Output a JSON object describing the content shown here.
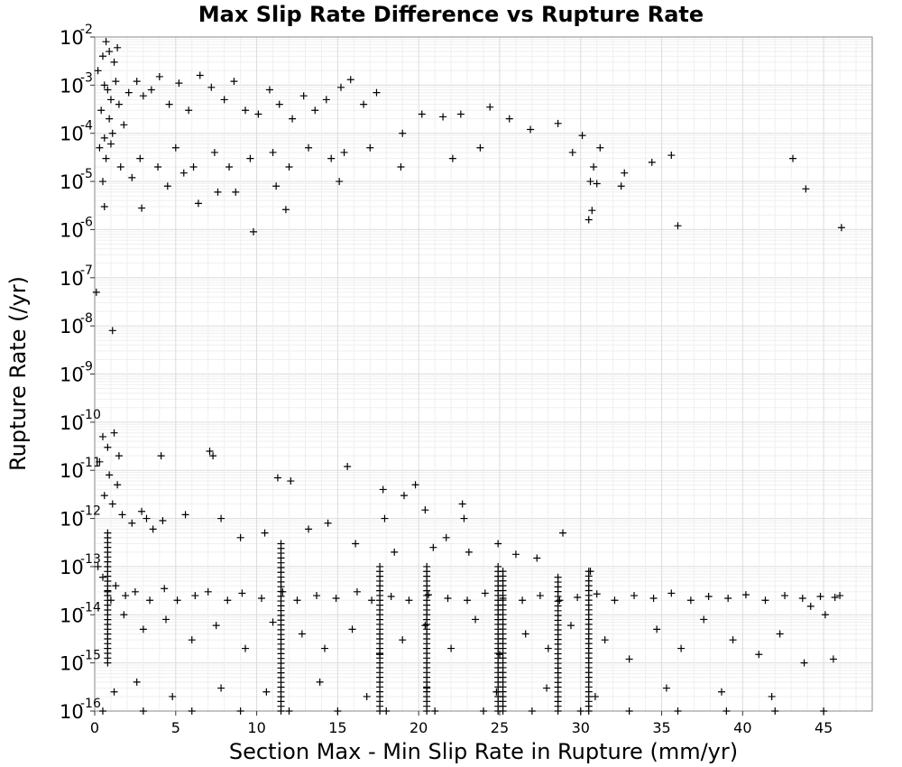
{
  "chart_data": {
    "type": "scatter",
    "title": "Max Slip Rate Difference vs Rupture Rate",
    "xlabel": "Section Max - Min Slip Rate in Rupture (mm/yr)",
    "ylabel": "Rupture Rate (/yr)",
    "xlim": [
      0,
      48
    ],
    "ylim": [
      1e-16,
      0.01
    ],
    "yscale": "log",
    "grid": true,
    "legend": "none",
    "marker": "plus",
    "marker_color": "#000000",
    "xticks": [
      0,
      5,
      10,
      15,
      20,
      25,
      30,
      35,
      40,
      45
    ],
    "yticks": [
      {
        "base": "10",
        "exp": "-2"
      },
      {
        "base": "10",
        "exp": "-3"
      },
      {
        "base": "10",
        "exp": "-4"
      },
      {
        "base": "10",
        "exp": "-5"
      },
      {
        "base": "10",
        "exp": "-6"
      },
      {
        "base": "10",
        "exp": "-7"
      },
      {
        "base": "10",
        "exp": "-8"
      },
      {
        "base": "10",
        "exp": "-9"
      },
      {
        "base": "10",
        "exp": "-10"
      },
      {
        "base": "10",
        "exp": "-11"
      },
      {
        "base": "10",
        "exp": "-12"
      },
      {
        "base": "10",
        "exp": "-13"
      },
      {
        "base": "10",
        "exp": "-14"
      },
      {
        "base": "10",
        "exp": "-15"
      },
      {
        "base": "10",
        "exp": "-16"
      }
    ],
    "points": [
      [
        0.2,
        0.002
      ],
      [
        0.5,
        0.004
      ],
      [
        0.7,
        0.008
      ],
      [
        0.9,
        0.005
      ],
      [
        1.2,
        0.003
      ],
      [
        1.4,
        0.006
      ],
      [
        0.6,
        0.001
      ],
      [
        0.8,
        0.0008
      ],
      [
        1.0,
        0.0005
      ],
      [
        1.3,
        0.0012
      ],
      [
        0.4,
        0.0003
      ],
      [
        0.9,
        0.0002
      ],
      [
        1.1,
        0.0001
      ],
      [
        0.6,
        8e-05
      ],
      [
        1.5,
        0.0004
      ],
      [
        0.3,
        5e-05
      ],
      [
        0.7,
        3e-05
      ],
      [
        1.0,
        6e-05
      ],
      [
        1.8,
        0.00015
      ],
      [
        2.1,
        0.0007
      ],
      [
        2.6,
        0.0012
      ],
      [
        3.0,
        0.0006
      ],
      [
        3.5,
        0.0008
      ],
      [
        4.0,
        0.0015
      ],
      [
        4.6,
        0.0004
      ],
      [
        5.2,
        0.0011
      ],
      [
        5.8,
        0.0003
      ],
      [
        6.5,
        0.0016
      ],
      [
        7.2,
        0.0009
      ],
      [
        8.0,
        0.0005
      ],
      [
        8.6,
        0.0012
      ],
      [
        9.3,
        0.0003
      ],
      [
        10.1,
        0.00025
      ],
      [
        10.8,
        0.0008
      ],
      [
        11.4,
        0.0004
      ],
      [
        12.2,
        0.0002
      ],
      [
        12.9,
        0.0006
      ],
      [
        13.6,
        0.0003
      ],
      [
        14.3,
        0.0005
      ],
      [
        15.2,
        0.0009
      ],
      [
        15.8,
        0.0013
      ],
      [
        16.6,
        0.0004
      ],
      [
        17.4,
        0.0007
      ],
      [
        19.0,
        0.0001
      ],
      [
        20.2,
        0.00025
      ],
      [
        21.5,
        0.00022
      ],
      [
        22.6,
        0.00025
      ],
      [
        24.4,
        0.00035
      ],
      [
        25.6,
        0.0002
      ],
      [
        26.9,
        0.00012
      ],
      [
        28.6,
        0.00016
      ],
      [
        30.1,
        9e-05
      ],
      [
        1.6,
        2e-05
      ],
      [
        2.8,
        3e-05
      ],
      [
        3.9,
        2e-05
      ],
      [
        5.0,
        5e-05
      ],
      [
        6.1,
        2e-05
      ],
      [
        7.4,
        4e-05
      ],
      [
        8.3,
        2e-05
      ],
      [
        9.6,
        3e-05
      ],
      [
        11.0,
        4e-05
      ],
      [
        12.0,
        2e-05
      ],
      [
        13.2,
        5e-05
      ],
      [
        14.6,
        3e-05
      ],
      [
        15.4,
        4e-05
      ],
      [
        17.0,
        5e-05
      ],
      [
        18.9,
        2e-05
      ],
      [
        22.1,
        3e-05
      ],
      [
        23.8,
        5e-05
      ],
      [
        29.5,
        4e-05
      ],
      [
        30.8,
        2e-05
      ],
      [
        31.2,
        5e-05
      ],
      [
        32.7,
        1.5e-05
      ],
      [
        34.4,
        2.5e-05
      ],
      [
        35.6,
        3.5e-05
      ],
      [
        43.1,
        3e-05
      ],
      [
        0.5,
        1e-05
      ],
      [
        2.3,
        1.2e-05
      ],
      [
        4.5,
        8e-06
      ],
      [
        5.5,
        1.5e-05
      ],
      [
        7.6,
        6e-06
      ],
      [
        8.7,
        6e-06
      ],
      [
        11.2,
        8e-06
      ],
      [
        15.1,
        1e-05
      ],
      [
        30.6,
        1e-05
      ],
      [
        31.0,
        9e-06
      ],
      [
        32.5,
        8e-06
      ],
      [
        43.9,
        7e-06
      ],
      [
        0.6,
        3e-06
      ],
      [
        2.9,
        2.8e-06
      ],
      [
        6.4,
        3.5e-06
      ],
      [
        11.8,
        2.6e-06
      ],
      [
        30.7,
        2.5e-06
      ],
      [
        30.5,
        1.6e-06
      ],
      [
        36.0,
        1.2e-06
      ],
      [
        46.1,
        1.1e-06
      ],
      [
        9.8,
        9e-07
      ],
      [
        0.1,
        5e-08
      ],
      [
        1.1,
        8e-09
      ],
      [
        0.5,
        5e-11
      ],
      [
        0.8,
        3e-11
      ],
      [
        1.2,
        6e-11
      ],
      [
        1.5,
        2e-11
      ],
      [
        0.3,
        1.5e-11
      ],
      [
        0.9,
        8e-12
      ],
      [
        1.4,
        5e-12
      ],
      [
        0.6,
        3e-12
      ],
      [
        1.1,
        2e-12
      ],
      [
        1.7,
        1.2e-12
      ],
      [
        2.3,
        8e-13
      ],
      [
        2.9,
        1.4e-12
      ],
      [
        3.6,
        6e-13
      ],
      [
        4.2,
        9e-13
      ],
      [
        4.1,
        2e-11
      ],
      [
        7.1,
        2.5e-11
      ],
      [
        7.3,
        2e-11
      ],
      [
        7.8,
        1e-12
      ],
      [
        11.3,
        7e-12
      ],
      [
        12.1,
        6e-12
      ],
      [
        15.6,
        1.2e-11
      ],
      [
        17.8,
        4e-12
      ],
      [
        17.9,
        1e-12
      ],
      [
        19.1,
        3e-12
      ],
      [
        19.8,
        5e-12
      ],
      [
        20.4,
        1.5e-12
      ],
      [
        21.7,
        4e-13
      ],
      [
        22.7,
        2e-12
      ],
      [
        22.8,
        1e-12
      ],
      [
        24.9,
        3e-13
      ],
      [
        26.0,
        1.8e-13
      ],
      [
        28.9,
        5e-13
      ],
      [
        3.2,
        1e-12
      ],
      [
        5.6,
        1.2e-12
      ],
      [
        9.0,
        4e-13
      ],
      [
        10.5,
        5e-13
      ],
      [
        13.2,
        6e-13
      ],
      [
        14.4,
        8e-13
      ],
      [
        16.1,
        3e-13
      ],
      [
        18.5,
        2e-13
      ],
      [
        20.9,
        2.5e-13
      ],
      [
        23.1,
        2e-13
      ],
      [
        27.3,
        1.5e-13
      ],
      [
        30.6,
        8e-14
      ],
      [
        0.2,
        1e-13
      ],
      [
        0.5,
        6e-14
      ],
      [
        0.8,
        3e-14
      ],
      [
        1.0,
        2e-14
      ],
      [
        1.3,
        4e-14
      ],
      [
        1.9,
        2.5e-14
      ],
      [
        2.5,
        3e-14
      ],
      [
        3.4,
        2e-14
      ],
      [
        4.3,
        3.5e-14
      ],
      [
        5.1,
        2e-14
      ],
      [
        6.2,
        2.5e-14
      ],
      [
        7.0,
        3e-14
      ],
      [
        8.2,
        2e-14
      ],
      [
        9.1,
        2.8e-14
      ],
      [
        10.3,
        2.2e-14
      ],
      [
        11.6,
        3e-14
      ],
      [
        12.5,
        2e-14
      ],
      [
        13.7,
        2.5e-14
      ],
      [
        14.9,
        2.2e-14
      ],
      [
        16.2,
        3e-14
      ],
      [
        17.1,
        2e-14
      ],
      [
        18.3,
        2.4e-14
      ],
      [
        19.4,
        2e-14
      ],
      [
        20.6,
        2.6e-14
      ],
      [
        21.8,
        2.2e-14
      ],
      [
        23.0,
        2e-14
      ],
      [
        24.1,
        2.8e-14
      ],
      [
        25.2,
        2.2e-14
      ],
      [
        26.4,
        2e-14
      ],
      [
        27.5,
        2.5e-14
      ],
      [
        28.7,
        2e-14
      ],
      [
        29.8,
        2.3e-14
      ],
      [
        31.0,
        2.7e-14
      ],
      [
        32.1,
        2e-14
      ],
      [
        33.3,
        2.5e-14
      ],
      [
        34.5,
        2.2e-14
      ],
      [
        35.6,
        2.8e-14
      ],
      [
        36.8,
        2e-14
      ],
      [
        37.9,
        2.4e-14
      ],
      [
        39.1,
        2.2e-14
      ],
      [
        40.2,
        2.6e-14
      ],
      [
        41.4,
        2e-14
      ],
      [
        42.6,
        2.5e-14
      ],
      [
        43.7,
        2.2e-14
      ],
      [
        44.8,
        2.4e-14
      ],
      [
        45.7,
        2.3e-14
      ],
      [
        46.0,
        2.5e-14
      ],
      [
        44.2,
        1.5e-14
      ],
      [
        45.1,
        1e-14
      ],
      [
        1.8,
        1e-14
      ],
      [
        3.0,
        5e-15
      ],
      [
        4.4,
        8e-15
      ],
      [
        6.0,
        3e-15
      ],
      [
        7.5,
        6e-15
      ],
      [
        9.3,
        2e-15
      ],
      [
        11.0,
        7e-15
      ],
      [
        12.8,
        4e-15
      ],
      [
        14.2,
        2e-15
      ],
      [
        15.9,
        5e-15
      ],
      [
        17.6,
        1.5e-15
      ],
      [
        19.0,
        3e-15
      ],
      [
        20.4,
        6e-15
      ],
      [
        22.0,
        2e-15
      ],
      [
        23.5,
        8e-15
      ],
      [
        25.0,
        1.5e-15
      ],
      [
        26.6,
        4e-15
      ],
      [
        28.0,
        2e-15
      ],
      [
        29.4,
        6e-15
      ],
      [
        31.5,
        3e-15
      ],
      [
        33.0,
        1.2e-15
      ],
      [
        34.7,
        5e-15
      ],
      [
        36.2,
        2e-15
      ],
      [
        37.6,
        8e-15
      ],
      [
        39.4,
        3e-15
      ],
      [
        41.0,
        1.5e-15
      ],
      [
        42.3,
        4e-15
      ],
      [
        43.8,
        1e-15
      ],
      [
        45.6,
        1.2e-15
      ],
      [
        1.2,
        2.5e-16
      ],
      [
        2.6,
        4e-16
      ],
      [
        4.8,
        2e-16
      ],
      [
        7.8,
        3e-16
      ],
      [
        10.6,
        2.5e-16
      ],
      [
        13.9,
        4e-16
      ],
      [
        16.8,
        2e-16
      ],
      [
        20.5,
        3e-16
      ],
      [
        24.8,
        2.5e-16
      ],
      [
        27.9,
        3e-16
      ],
      [
        30.9,
        2e-16
      ],
      [
        35.3,
        3e-16
      ],
      [
        38.7,
        2.5e-16
      ],
      [
        41.8,
        2e-16
      ],
      [
        0.5,
        1e-16
      ],
      [
        3.0,
        1e-16
      ],
      [
        6.0,
        1e-16
      ],
      [
        9.0,
        1e-16
      ],
      [
        12.0,
        1e-16
      ],
      [
        15.0,
        1e-16
      ],
      [
        18.0,
        1e-16
      ],
      [
        21.0,
        1e-16
      ],
      [
        24.0,
        1e-16
      ],
      [
        27.0,
        1e-16
      ],
      [
        30.0,
        1e-16
      ],
      [
        33.0,
        1e-16
      ],
      [
        36.0,
        1e-16
      ],
      [
        39.0,
        1e-16
      ],
      [
        42.0,
        1e-16
      ],
      [
        45.0,
        1e-16
      ]
    ],
    "dense_columns": [
      {
        "x": 0.8,
        "ymin": 1e-15,
        "ymax": 5e-13
      },
      {
        "x": 11.5,
        "ymin": 1e-16,
        "ymax": 3e-13
      },
      {
        "x": 17.6,
        "ymin": 1e-16,
        "ymax": 1e-13
      },
      {
        "x": 20.5,
        "ymin": 1e-16,
        "ymax": 1e-13
      },
      {
        "x": 24.9,
        "ymin": 1e-16,
        "ymax": 1e-13
      },
      {
        "x": 25.2,
        "ymin": 1e-16,
        "ymax": 8e-14
      },
      {
        "x": 28.6,
        "ymin": 1e-16,
        "ymax": 6e-14
      },
      {
        "x": 30.5,
        "ymin": 1e-16,
        "ymax": 8e-14
      }
    ]
  }
}
